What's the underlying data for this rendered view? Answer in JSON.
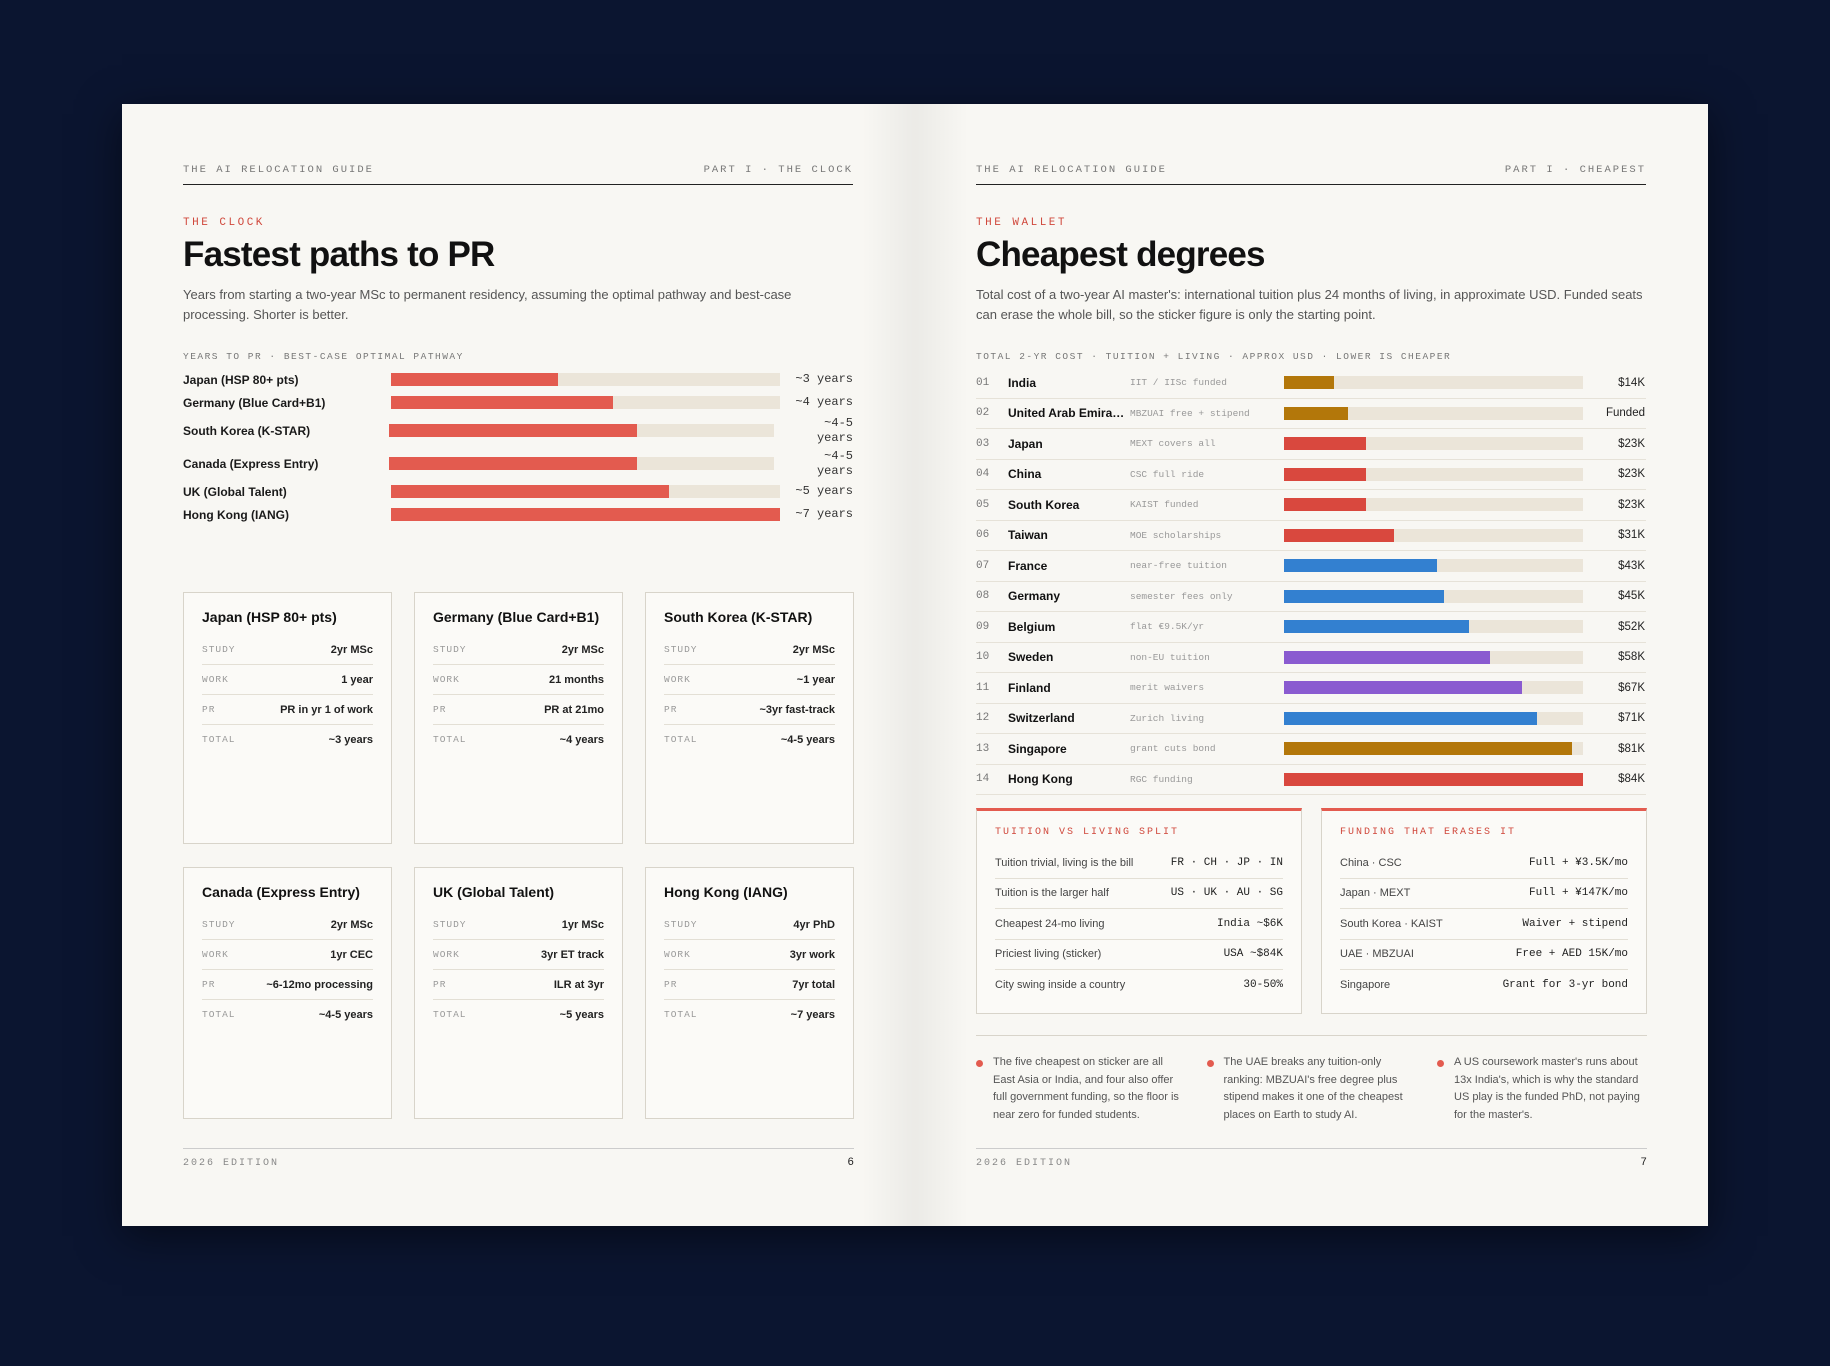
{
  "left": {
    "runhead_left": "THE AI RELOCATION GUIDE",
    "runhead_right": "PART I · THE CLOCK",
    "kicker": "THE CLOCK",
    "title": "Fastest paths to PR",
    "lede": "Years from starting a two-year MSc to permanent residency, assuming the optimal pathway and best-case processing. Shorter is better.",
    "chart_label": "YEARS TO PR · BEST-CASE OPTIMAL PATHWAY",
    "cards": [
      {
        "title": "Japan (HSP 80+ pts)",
        "rows": [
          [
            "STUDY",
            "2yr MSc"
          ],
          [
            "WORK",
            "1 year"
          ],
          [
            "PR",
            "PR in yr 1 of work"
          ],
          [
            "TOTAL",
            "~3 years"
          ]
        ]
      },
      {
        "title": "Germany (Blue Card+B1)",
        "rows": [
          [
            "STUDY",
            "2yr MSc"
          ],
          [
            "WORK",
            "21 months"
          ],
          [
            "PR",
            "PR at 21mo"
          ],
          [
            "TOTAL",
            "~4 years"
          ]
        ]
      },
      {
        "title": "South Korea (K-STAR)",
        "rows": [
          [
            "STUDY",
            "2yr MSc"
          ],
          [
            "WORK",
            "~1 year"
          ],
          [
            "PR",
            "~3yr fast-track"
          ],
          [
            "TOTAL",
            "~4-5 years"
          ]
        ]
      },
      {
        "title": "Canada (Express Entry)",
        "rows": [
          [
            "STUDY",
            "2yr MSc"
          ],
          [
            "WORK",
            "1yr CEC"
          ],
          [
            "PR",
            "~6-12mo processing"
          ],
          [
            "TOTAL",
            "~4-5 years"
          ]
        ]
      },
      {
        "title": "UK (Global Talent)",
        "rows": [
          [
            "STUDY",
            "1yr MSc"
          ],
          [
            "WORK",
            "3yr ET track"
          ],
          [
            "PR",
            "ILR at 3yr"
          ],
          [
            "TOTAL",
            "~5 years"
          ]
        ]
      },
      {
        "title": "Hong Kong (IANG)",
        "rows": [
          [
            "STUDY",
            "4yr PhD"
          ],
          [
            "WORK",
            "3yr work"
          ],
          [
            "PR",
            "7yr total"
          ],
          [
            "TOTAL",
            "~7 years"
          ]
        ]
      }
    ],
    "folio_edition": "2026 EDITION",
    "folio_page": "6"
  },
  "right": {
    "runhead_left": "THE AI RELOCATION GUIDE",
    "runhead_right": "PART I · CHEAPEST",
    "kicker": "THE WALLET",
    "title": "Cheapest degrees",
    "lede": "Total cost of a two-year AI master's: international tuition plus 24 months of living, in approximate USD. Funded seats can erase the whole bill, so the sticker figure is only the starting point.",
    "chart_label": "TOTAL 2-YR COST · TUITION + LIVING · APPROX USD · LOWER IS CHEAPER",
    "box1": {
      "title": "TUITION VS LIVING SPLIT",
      "rows": [
        [
          "Tuition trivial, living is the bill",
          "FR · CH · JP · IN"
        ],
        [
          "Tuition is the larger half",
          "US · UK · AU · SG"
        ],
        [
          "Cheapest 24-mo living",
          "India ~$6K"
        ],
        [
          "Priciest living (sticker)",
          "USA ~$84K"
        ],
        [
          "City swing inside a country",
          "30-50%"
        ]
      ]
    },
    "box2": {
      "title": "FUNDING THAT ERASES IT",
      "rows": [
        [
          "China · CSC",
          "Full + ¥3.5K/mo"
        ],
        [
          "Japan · MEXT",
          "Full + ¥147K/mo"
        ],
        [
          "South Korea · KAIST",
          "Waiver + stipend"
        ],
        [
          "UAE · MBZUAI",
          "Free + AED 15K/mo"
        ],
        [
          "Singapore",
          "Grant for 3-yr bond"
        ]
      ]
    },
    "notes": [
      "The five cheapest on sticker are all East Asia or India, and four also offer full government funding, so the floor is near zero for funded students.",
      "The UAE breaks any tuition-only ranking: MBZUAI's free degree plus stipend makes it one of the cheapest places on Earth to study AI.",
      "A US coursework master's runs about 13x India's, which is why the standard US play is the funded PhD, not paying for the master's."
    ],
    "folio_edition": "2026 EDITION",
    "folio_page": "7"
  },
  "chart_data": [
    {
      "type": "bar",
      "orientation": "horizontal",
      "title": "Fastest paths to PR",
      "xlabel": "Years to PR",
      "categories": [
        "Japan (HSP 80+ pts)",
        "Germany (Blue Card+B1)",
        "South Korea (K-STAR)",
        "Canada (Express Entry)",
        "UK (Global Talent)",
        "Hong Kong (IANG)"
      ],
      "values": [
        3,
        4,
        4.5,
        4.5,
        5,
        7
      ],
      "value_labels": [
        "~3 years",
        "~4 years",
        "~4-5 years",
        "~4-5 years",
        "~5 years",
        "~7 years"
      ],
      "xlim": [
        0,
        7
      ],
      "colors": {
        "fill": "#e35b4f",
        "track": "#ebe5d9"
      }
    },
    {
      "type": "bar",
      "orientation": "horizontal",
      "title": "Cheapest degrees",
      "xlabel": "Total 2-yr cost (USD)",
      "ranks": [
        "01",
        "02",
        "03",
        "04",
        "05",
        "06",
        "07",
        "08",
        "09",
        "10",
        "11",
        "12",
        "13",
        "14"
      ],
      "categories": [
        "India",
        "United Arab Emira…",
        "Japan",
        "China",
        "South Korea",
        "Taiwan",
        "France",
        "Germany",
        "Belgium",
        "Sweden",
        "Finland",
        "Switzerland",
        "Singapore",
        "Hong Kong"
      ],
      "notes": [
        "IIT / IISc funded",
        "MBZUAI free + stipend",
        "MEXT covers all",
        "CSC full ride",
        "KAIST funded",
        "MOE scholarships",
        "near-free tuition",
        "semester fees only",
        "flat €9.5K/yr",
        "non-EU tuition",
        "merit waivers",
        "Zurich living",
        "grant cuts bond",
        "RGC funding"
      ],
      "values": [
        14,
        18,
        23,
        23,
        23,
        31,
        43,
        45,
        52,
        58,
        67,
        71,
        81,
        84
      ],
      "value_labels": [
        "$14K",
        "Funded",
        "$23K",
        "$23K",
        "$23K",
        "$31K",
        "$43K",
        "$45K",
        "$52K",
        "$58K",
        "$67K",
        "$71K",
        "$81K",
        "$84K"
      ],
      "bar_colors": [
        "#b3770a",
        "#b3770a",
        "#d9483e",
        "#d9483e",
        "#d9483e",
        "#d9483e",
        "#3380d0",
        "#3380d0",
        "#3380d0",
        "#8a5bd0",
        "#8a5bd0",
        "#3380d0",
        "#b3770a",
        "#d9483e"
      ],
      "xlim": [
        0,
        84
      ],
      "units": "K USD"
    }
  ]
}
